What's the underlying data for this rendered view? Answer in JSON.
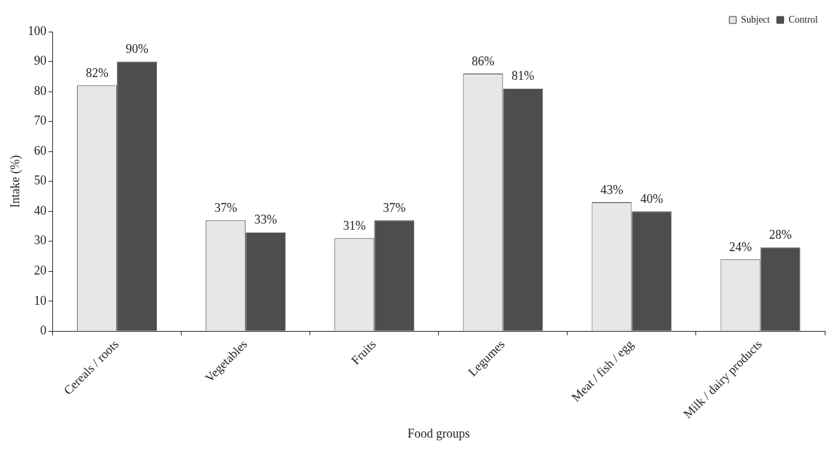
{
  "chart_data": {
    "type": "bar",
    "xlabel": "Food groups",
    "ylabel": "Intake (%)",
    "categories": [
      "Cereals / roots",
      "Vegetables",
      "Fruits",
      "Legumes",
      "Meat / fish / egg",
      "Milk / dairy products"
    ],
    "series": [
      {
        "name": "Subject",
        "color": "#e6e7e8",
        "values": [
          82,
          37,
          31,
          86,
          43,
          24
        ],
        "value_labels": [
          "82%",
          "37%",
          "31%",
          "86%",
          "43%",
          "24%"
        ]
      },
      {
        "name": "Control",
        "color": "#4d4d4f",
        "values": [
          90,
          33,
          37,
          81,
          40,
          28
        ],
        "value_labels": [
          "90%",
          "33%",
          "37%",
          "81%",
          "40%",
          "28%"
        ]
      }
    ],
    "ylim": [
      0,
      100
    ],
    "yticks": [
      0,
      10,
      20,
      30,
      40,
      50,
      60,
      70,
      80,
      90,
      100
    ],
    "grid": false,
    "legend": "top right"
  }
}
